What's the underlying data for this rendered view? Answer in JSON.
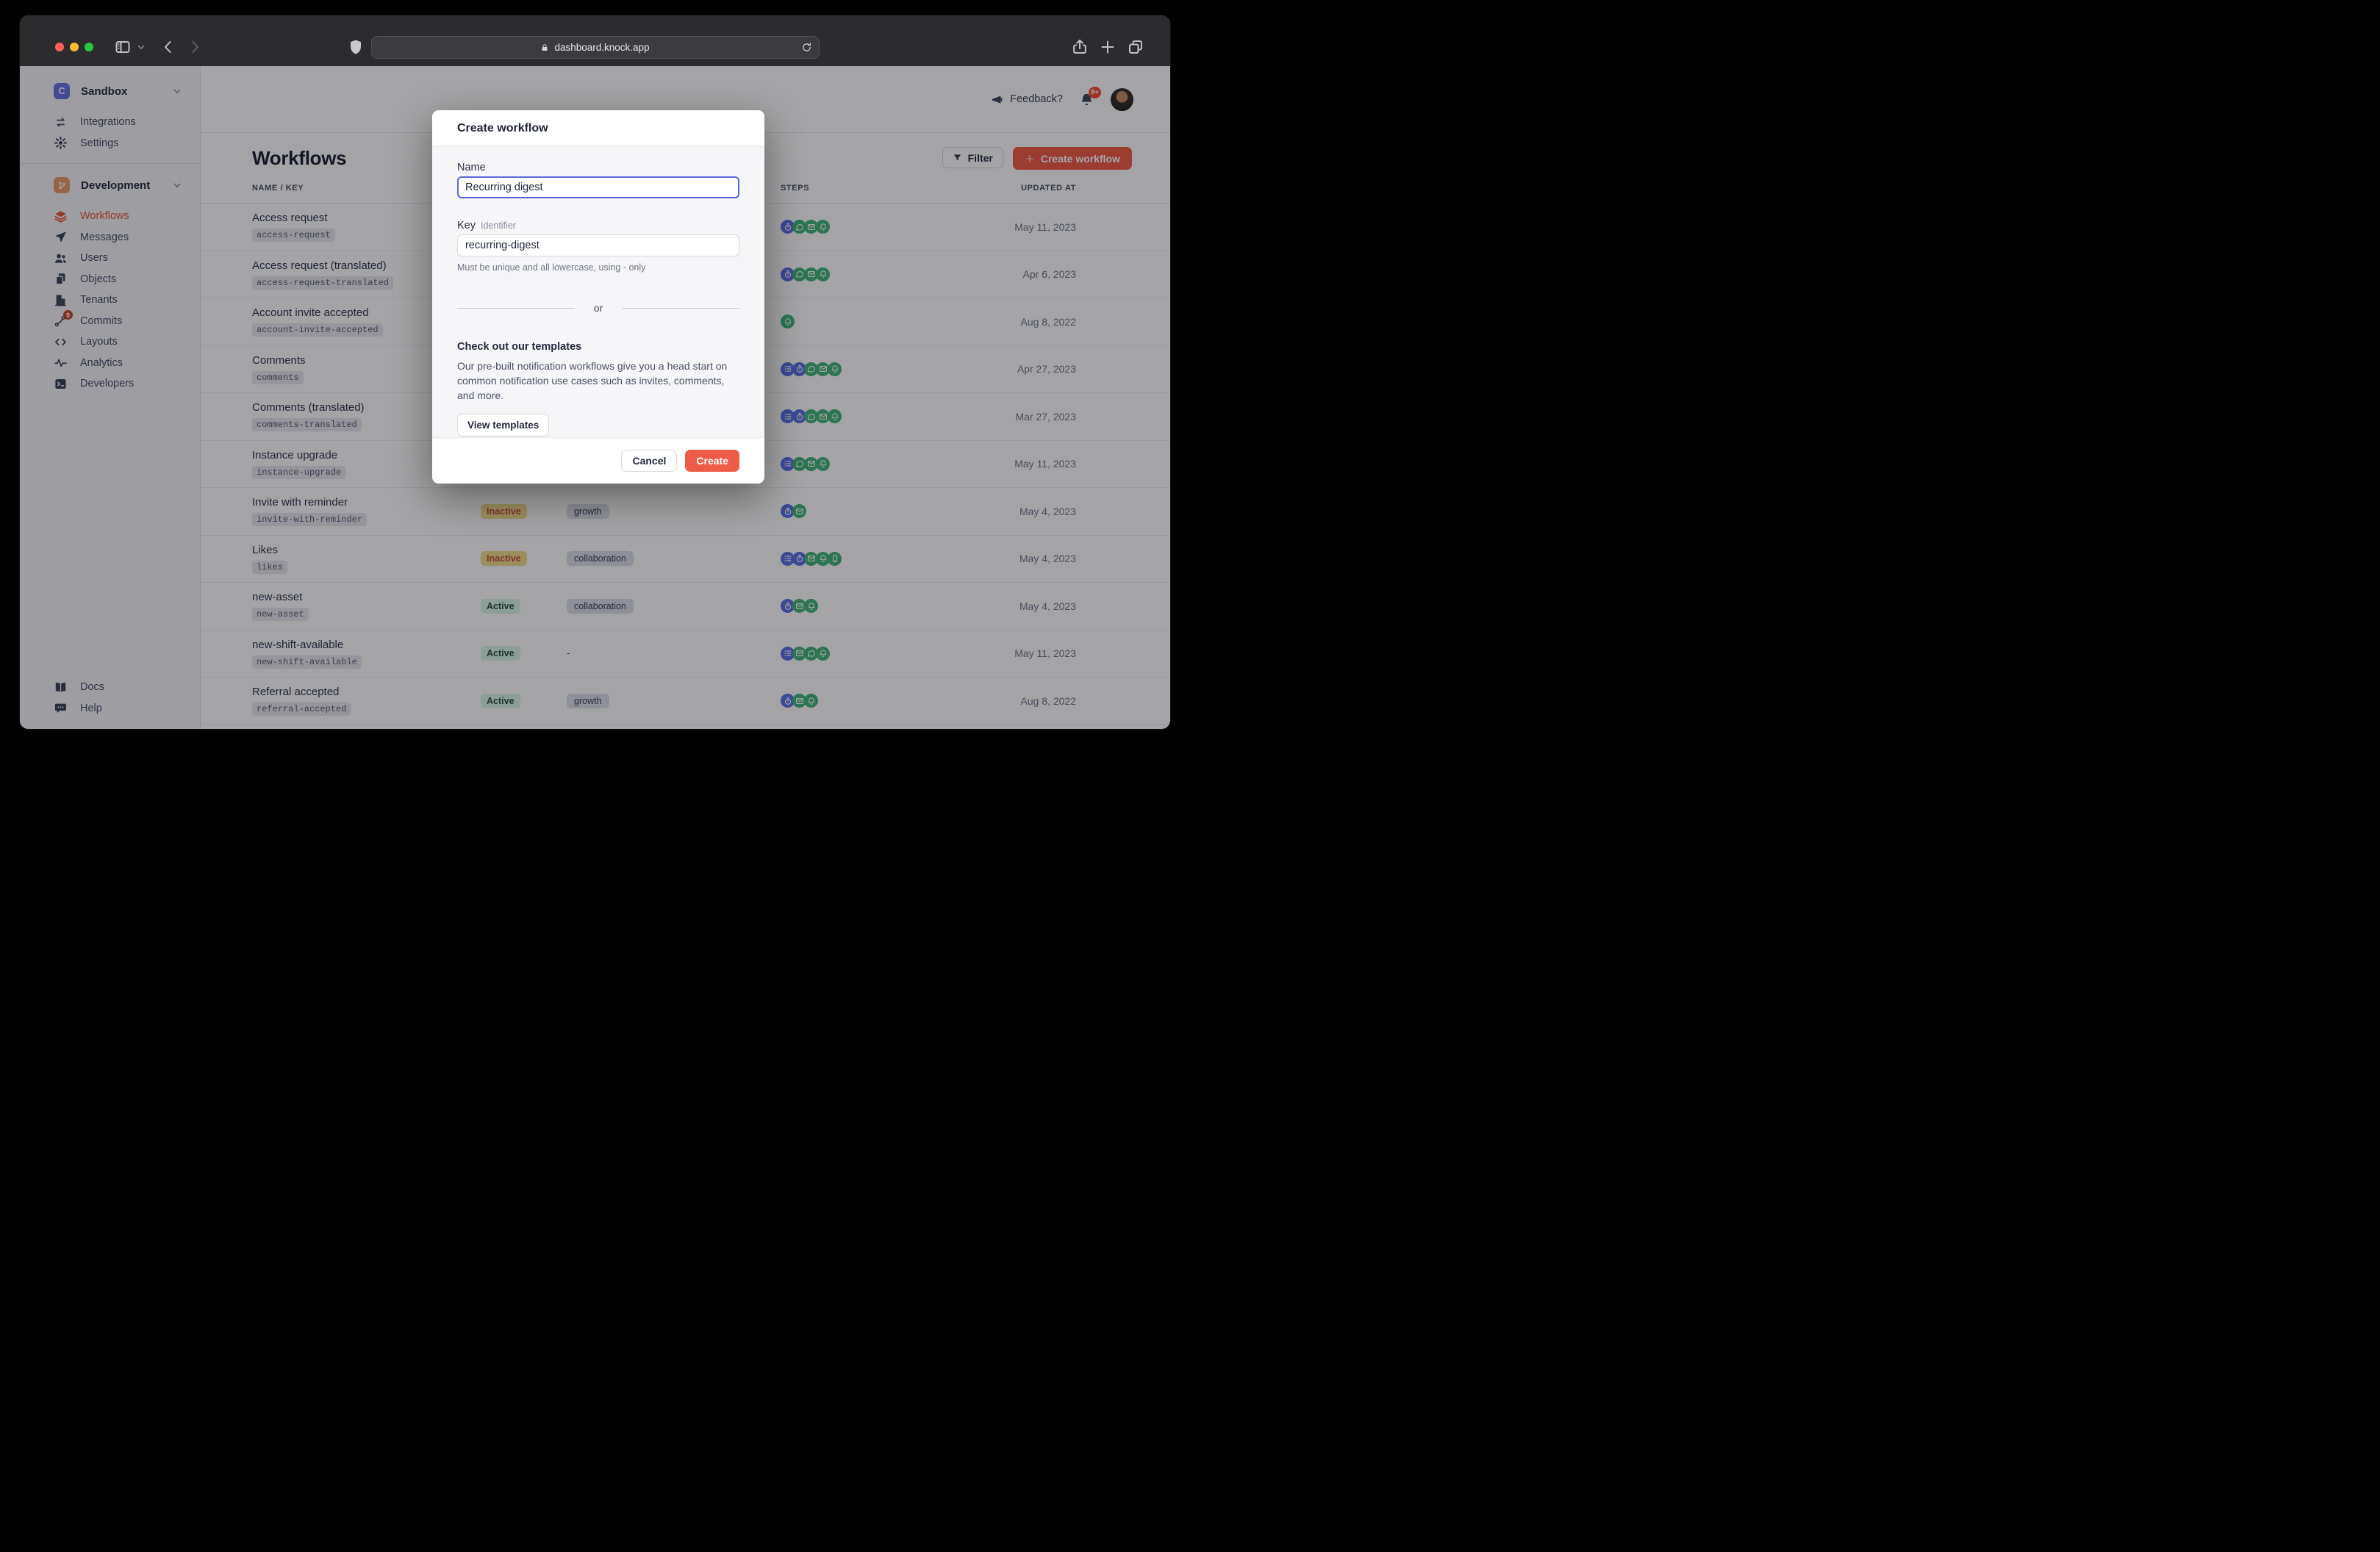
{
  "browser": {
    "url": "dashboard.knock.app"
  },
  "sidebar": {
    "workspace": {
      "name": "Sandbox",
      "initial": "C"
    },
    "top_items": [
      {
        "id": "integrations",
        "label": "Integrations",
        "icon": "swap-icon"
      },
      {
        "id": "settings",
        "label": "Settings",
        "icon": "gear-icon"
      }
    ],
    "environment": {
      "name": "Development"
    },
    "nav_items": [
      {
        "id": "workflows",
        "label": "Workflows",
        "icon": "layers-icon",
        "active": true
      },
      {
        "id": "messages",
        "label": "Messages",
        "icon": "paper-plane-icon"
      },
      {
        "id": "users",
        "label": "Users",
        "icon": "users-icon"
      },
      {
        "id": "objects",
        "label": "Objects",
        "icon": "documents-icon"
      },
      {
        "id": "tenants",
        "label": "Tenants",
        "icon": "building-icon"
      },
      {
        "id": "commits",
        "label": "Commits",
        "icon": "git-commit-icon",
        "badge": "9"
      },
      {
        "id": "layouts",
        "label": "Layouts",
        "icon": "code-icon"
      },
      {
        "id": "analytics",
        "label": "Analytics",
        "icon": "pulse-icon"
      },
      {
        "id": "developers",
        "label": "Developers",
        "icon": "terminal-icon"
      }
    ],
    "footer_items": [
      {
        "id": "docs",
        "label": "Docs",
        "icon": "book-icon"
      },
      {
        "id": "help",
        "label": "Help",
        "icon": "chat-bubble-icon"
      }
    ]
  },
  "topbar": {
    "feedback_label": "Feedback?",
    "notification_count": "9+"
  },
  "page": {
    "title": "Workflows",
    "filter_label": "Filter",
    "create_label": "Create workflow"
  },
  "table": {
    "headers": {
      "name": "NAME / KEY",
      "steps": "STEPS",
      "updated": "UPDATED AT"
    },
    "rows": [
      {
        "name": "Access request",
        "key": "access-request",
        "status": "",
        "category": null,
        "steps": [
          {
            "type": "delay",
            "color": "blue"
          },
          {
            "type": "chat",
            "color": "green"
          },
          {
            "type": "email",
            "color": "green"
          },
          {
            "type": "bell",
            "color": "green"
          }
        ],
        "updated": "May 11, 2023"
      },
      {
        "name": "Access request (translated)",
        "key": "access-request-translated",
        "status": "",
        "category": null,
        "steps": [
          {
            "type": "delay",
            "color": "blue"
          },
          {
            "type": "chat",
            "color": "green"
          },
          {
            "type": "email",
            "color": "green"
          },
          {
            "type": "bell",
            "color": "green"
          }
        ],
        "updated": "Apr 6, 2023"
      },
      {
        "name": "Account invite accepted",
        "key": "account-invite-accepted",
        "status": "",
        "category": null,
        "steps": [
          {
            "type": "bell",
            "color": "green"
          }
        ],
        "updated": "Aug 8, 2022"
      },
      {
        "name": "Comments",
        "key": "comments",
        "status": "",
        "category": null,
        "steps": [
          {
            "type": "batch",
            "color": "blue"
          },
          {
            "type": "delay",
            "color": "blue"
          },
          {
            "type": "chat",
            "color": "green"
          },
          {
            "type": "email",
            "color": "green"
          },
          {
            "type": "bell",
            "color": "green"
          }
        ],
        "updated": "Apr 27, 2023"
      },
      {
        "name": "Comments (translated)",
        "key": "comments-translated",
        "status": "",
        "category": null,
        "steps": [
          {
            "type": "batch",
            "color": "blue"
          },
          {
            "type": "delay",
            "color": "blue"
          },
          {
            "type": "chat",
            "color": "green"
          },
          {
            "type": "email",
            "color": "green"
          },
          {
            "type": "bell",
            "color": "green"
          }
        ],
        "updated": "Mar 27, 2023"
      },
      {
        "name": "Instance upgrade",
        "key": "instance-upgrade",
        "status": "",
        "category": null,
        "steps": [
          {
            "type": "batch",
            "color": "blue"
          },
          {
            "type": "chat",
            "color": "green"
          },
          {
            "type": "email",
            "color": "green"
          },
          {
            "type": "bell",
            "color": "green"
          }
        ],
        "updated": "May 11, 2023"
      },
      {
        "name": "Invite with reminder",
        "key": "invite-with-reminder",
        "status": "Inactive",
        "category": "growth",
        "steps": [
          {
            "type": "delay",
            "color": "blue"
          },
          {
            "type": "email",
            "color": "green"
          }
        ],
        "updated": "May 4, 2023"
      },
      {
        "name": "Likes",
        "key": "likes",
        "status": "Inactive",
        "category": "collaboration",
        "steps": [
          {
            "type": "batch",
            "color": "blue"
          },
          {
            "type": "delay",
            "color": "blue"
          },
          {
            "type": "email",
            "color": "green"
          },
          {
            "type": "bell",
            "color": "green"
          },
          {
            "type": "sms",
            "color": "green"
          }
        ],
        "updated": "May 4, 2023"
      },
      {
        "name": "new-asset",
        "key": "new-asset",
        "status": "Active",
        "category": "collaboration",
        "steps": [
          {
            "type": "delay",
            "color": "blue"
          },
          {
            "type": "email",
            "color": "green"
          },
          {
            "type": "bell",
            "color": "green"
          }
        ],
        "updated": "May 4, 2023"
      },
      {
        "name": "new-shift-available",
        "key": "new-shift-available",
        "status": "Active",
        "category": "-",
        "steps": [
          {
            "type": "batch",
            "color": "blue"
          },
          {
            "type": "email",
            "color": "green"
          },
          {
            "type": "chat",
            "color": "green"
          },
          {
            "type": "bell",
            "color": "green"
          }
        ],
        "updated": "May 11, 2023"
      },
      {
        "name": "Referral accepted",
        "key": "referral-accepted",
        "status": "Active",
        "category": "growth",
        "steps": [
          {
            "type": "delay",
            "color": "blue"
          },
          {
            "type": "email",
            "color": "green"
          },
          {
            "type": "bell",
            "color": "green"
          }
        ],
        "updated": "Aug 8, 2022"
      }
    ]
  },
  "modal": {
    "title": "Create workflow",
    "name_label": "Name",
    "name_value": "Recurring digest",
    "key_label": "Key",
    "key_sublabel": "Identifier",
    "key_value": "recurring-digest",
    "key_help": "Must be unique and all lowercase, using - only",
    "or_label": "or",
    "templates_heading": "Check out our templates",
    "templates_body": "Our pre-built notification workflows give you a head start on common notification use cases such as invites, comments, and more.",
    "view_templates_label": "View templates",
    "cancel_label": "Cancel",
    "create_label": "Create"
  },
  "colors": {
    "accent_red": "#EE5B46",
    "step_blue": "#5A6FE0",
    "step_green": "#42B37A",
    "inactive_badge_bg": "#F0DD8D",
    "active_badge_bg": "#D9F4E4",
    "workspace_logo": "#6A70DF",
    "environment_logo": "#E79C6C"
  }
}
